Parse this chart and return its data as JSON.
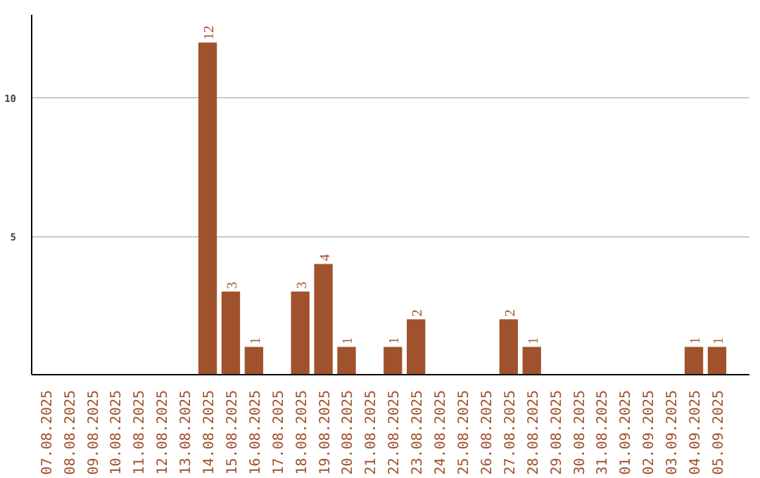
{
  "chart_data": {
    "type": "bar",
    "categories": [
      "07.08.2025",
      "08.08.2025",
      "09.08.2025",
      "10.08.2025",
      "11.08.2025",
      "12.08.2025",
      "13.08.2025",
      "14.08.2025",
      "15.08.2025",
      "16.08.2025",
      "17.08.2025",
      "18.08.2025",
      "19.08.2025",
      "20.08.2025",
      "21.08.2025",
      "22.08.2025",
      "23.08.2025",
      "24.08.2025",
      "25.08.2025",
      "26.08.2025",
      "27.08.2025",
      "28.08.2025",
      "29.08.2025",
      "30.08.2025",
      "31.08.2025",
      "01.09.2025",
      "02.09.2025",
      "03.09.2025",
      "04.09.2025",
      "05.09.2025"
    ],
    "values": [
      0,
      0,
      0,
      0,
      0,
      0,
      0,
      12,
      3,
      1,
      0,
      3,
      4,
      1,
      0,
      1,
      2,
      0,
      0,
      0,
      2,
      1,
      0,
      0,
      0,
      0,
      0,
      0,
      1,
      1
    ],
    "value_labels": [
      null,
      null,
      null,
      null,
      null,
      null,
      null,
      "12",
      "3",
      "1",
      null,
      "3",
      "4",
      "1",
      null,
      "1",
      "2",
      null,
      null,
      null,
      "2",
      "1",
      null,
      null,
      null,
      null,
      null,
      null,
      "1",
      "1"
    ],
    "color": "#a0522d",
    "ylim": [
      0,
      13
    ],
    "yticks": [
      5,
      10
    ],
    "grid": "y"
  }
}
